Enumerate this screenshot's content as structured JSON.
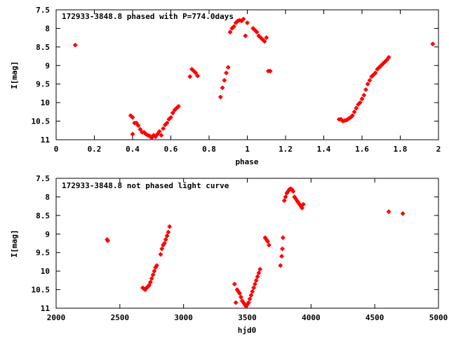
{
  "chart_data": [
    {
      "type": "scatter",
      "title": "172933-3848.8 phased with P=774.0days",
      "xlabel": "phase",
      "ylabel": "I[mag]",
      "xlim": [
        0,
        2
      ],
      "ylim": [
        11,
        7.5
      ],
      "y_inverted": true,
      "xticks": [
        "0",
        "0.2",
        "0.4",
        "0.6",
        "0.8",
        "1",
        "1.2",
        "1.4",
        "1.6",
        "1.8",
        "2"
      ],
      "yticks": [
        "7.5",
        "8",
        "8.5",
        "9",
        "9.5",
        "10",
        "10.5",
        "11"
      ],
      "marker_color": "#ff0000",
      "marker": "plus",
      "grid": false,
      "series": [
        {
          "x": [
            0.1,
            0.39,
            0.4,
            0.4,
            0.41,
            0.42,
            0.43,
            0.44,
            0.45,
            0.46,
            0.47,
            0.48,
            0.49,
            0.5,
            0.51,
            0.52,
            0.53,
            0.54,
            0.55,
            0.56,
            0.57,
            0.58,
            0.59,
            0.6,
            0.61,
            0.62,
            0.63,
            0.64,
            0.7,
            0.71,
            0.72,
            0.73,
            0.74,
            0.86,
            0.87,
            0.88,
            0.89,
            0.9,
            0.91,
            0.92,
            0.93,
            0.94,
            0.95,
            0.96,
            0.97,
            0.98,
            0.99,
            1.0,
            1.03,
            1.04,
            1.05,
            1.06,
            1.07,
            1.08,
            1.09,
            1.1,
            1.11,
            1.12,
            1.48,
            1.49,
            1.5,
            1.51,
            1.52,
            1.53,
            1.54,
            1.55,
            1.56,
            1.57,
            1.58,
            1.59,
            1.6,
            1.61,
            1.62,
            1.63,
            1.64,
            1.65,
            1.66,
            1.67,
            1.68,
            1.69,
            1.7,
            1.71,
            1.72,
            1.73,
            1.74,
            1.97
          ],
          "y": [
            8.45,
            10.35,
            10.85,
            10.4,
            10.55,
            10.55,
            10.62,
            10.72,
            10.8,
            10.8,
            10.85,
            10.88,
            10.9,
            10.95,
            10.88,
            10.92,
            10.85,
            10.78,
            10.88,
            10.7,
            10.6,
            10.55,
            10.45,
            10.4,
            10.28,
            10.2,
            10.15,
            10.1,
            9.3,
            9.1,
            9.15,
            9.2,
            9.28,
            9.85,
            9.6,
            9.4,
            9.2,
            9.05,
            8.1,
            8.0,
            7.95,
            7.85,
            7.8,
            7.78,
            7.8,
            7.75,
            8.2,
            7.85,
            8.0,
            8.05,
            8.1,
            8.2,
            8.25,
            8.3,
            8.35,
            8.25,
            9.15,
            9.15,
            10.45,
            10.45,
            10.5,
            10.48,
            10.47,
            10.43,
            10.4,
            10.35,
            10.25,
            10.15,
            10.05,
            10.0,
            9.9,
            9.8,
            9.65,
            9.5,
            9.4,
            9.3,
            9.25,
            9.2,
            9.1,
            9.05,
            9.0,
            8.95,
            8.9,
            8.85,
            8.78,
            8.42
          ]
        }
      ]
    },
    {
      "type": "scatter",
      "title": "172933-3848.8 not phased light curve",
      "xlabel": "hjd0",
      "ylabel": "I[mag]",
      "xlim": [
        2000,
        5000
      ],
      "ylim": [
        11,
        7.5
      ],
      "y_inverted": true,
      "xticks": [
        "2000",
        "2500",
        "3000",
        "3500",
        "4000",
        "4500",
        "5000"
      ],
      "yticks": [
        "7.5",
        "8",
        "8.5",
        "9",
        "9.5",
        "10",
        "10.5",
        "11"
      ],
      "marker_color": "#ff0000",
      "marker": "plus",
      "grid": false,
      "series": [
        {
          "x": [
            2400,
            2405,
            2680,
            2690,
            2700,
            2710,
            2720,
            2730,
            2740,
            2750,
            2760,
            2770,
            2780,
            2790,
            2820,
            2830,
            2840,
            2850,
            2860,
            2870,
            2880,
            2890,
            3400,
            3410,
            3420,
            3430,
            3440,
            3450,
            3460,
            3470,
            3480,
            3490,
            3500,
            3510,
            3520,
            3530,
            3540,
            3550,
            3560,
            3570,
            3580,
            3590,
            3600,
            3640,
            3650,
            3660,
            3670,
            3760,
            3770,
            3775,
            3780,
            3790,
            3800,
            3810,
            3820,
            3830,
            3840,
            3850,
            3860,
            3870,
            3880,
            3890,
            3900,
            3910,
            3920,
            3930,
            3940,
            4610,
            4720
          ],
          "y": [
            9.15,
            9.18,
            10.45,
            10.48,
            10.5,
            10.45,
            10.42,
            10.38,
            10.3,
            10.2,
            10.1,
            10.0,
            9.9,
            9.85,
            9.55,
            9.4,
            9.3,
            9.25,
            9.15,
            9.05,
            8.95,
            8.8,
            10.35,
            10.85,
            10.5,
            10.55,
            10.6,
            10.7,
            10.8,
            10.85,
            10.9,
            10.95,
            10.9,
            10.85,
            10.75,
            10.65,
            10.55,
            10.45,
            10.35,
            10.25,
            10.15,
            10.05,
            9.95,
            9.1,
            9.15,
            9.2,
            9.3,
            9.85,
            9.6,
            9.4,
            9.1,
            8.1,
            8.0,
            7.9,
            7.85,
            7.8,
            7.78,
            7.8,
            7.85,
            8.0,
            8.05,
            8.1,
            8.15,
            8.2,
            8.25,
            8.3,
            8.2,
            8.4,
            8.45
          ]
        }
      ]
    }
  ]
}
